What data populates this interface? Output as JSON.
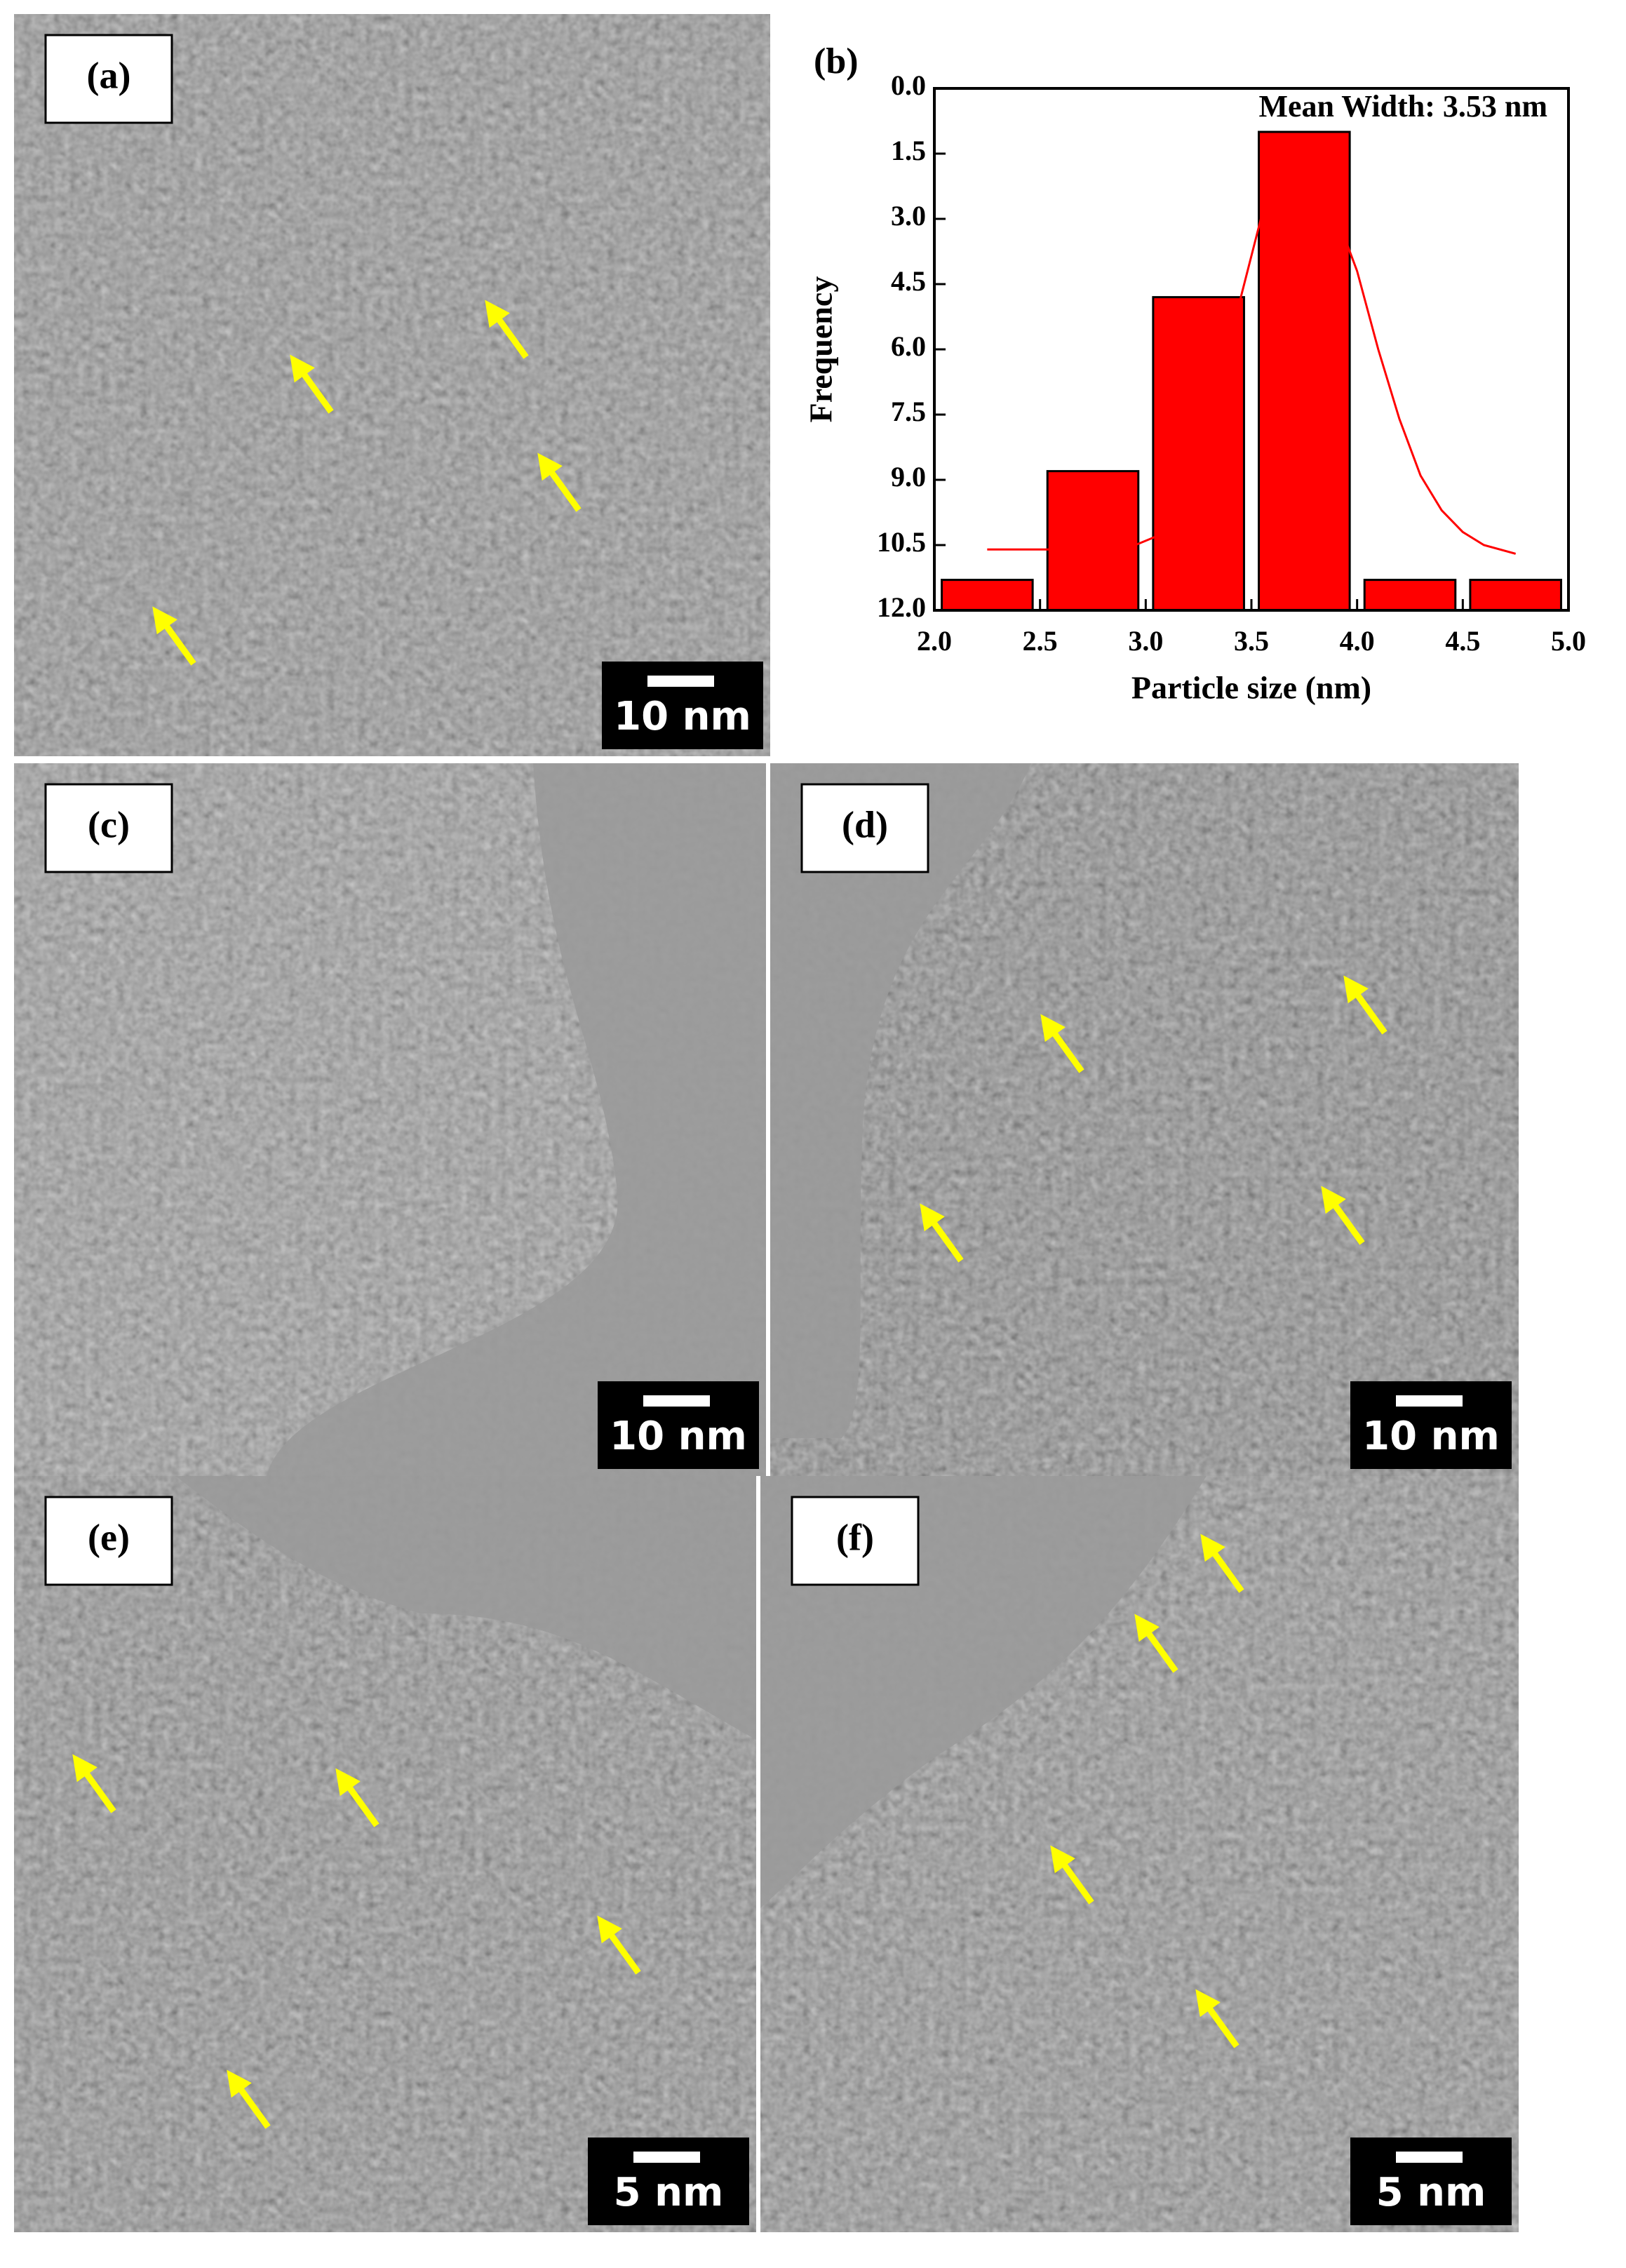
{
  "panels": [
    {
      "label": "(a)",
      "scale_bar": "10 nm"
    },
    {
      "label": "(b)"
    },
    {
      "label": "(c)",
      "scale_bar": "10 nm"
    },
    {
      "label": "(d)",
      "scale_bar": "10 nm"
    },
    {
      "label": "(e)",
      "scale_bar": "5 nm"
    },
    {
      "label": "(f)",
      "scale_bar": "5 nm"
    }
  ],
  "chart_data": {
    "type": "histogram",
    "annotation": "Mean Width: 3.53 nm",
    "x_label": "Particle size (nm)",
    "y_label": "Frequency",
    "bins": [
      2.0,
      2.5,
      3.0,
      3.5,
      4.0,
      4.5,
      5.0
    ],
    "values": [
      11.3,
      8.8,
      4.8,
      1.0,
      11.3,
      11.3
    ],
    "color": "#ff0000",
    "fit_curve": {
      "color": "#ff0000",
      "x": [
        2.25,
        2.6,
        2.9,
        3.05,
        3.2,
        3.35,
        3.45,
        3.55,
        3.65,
        3.8,
        3.9,
        4.0,
        4.1,
        4.2,
        4.3,
        4.4,
        4.5,
        4.6,
        4.75
      ],
      "values": [
        10.6,
        10.6,
        10.6,
        10.3,
        9.6,
        7.5,
        4.8,
        2.9,
        2.6,
        2.6,
        2.9,
        4.2,
        6.0,
        7.6,
        8.9,
        9.7,
        10.2,
        10.5,
        10.7
      ]
    },
    "xlim": [
      2.0,
      5.0
    ],
    "xticks": [
      {
        "value": 2.0,
        "label": "2.0"
      },
      2.5,
      {
        "value": 3.0,
        "label": "3.0"
      },
      3.5,
      {
        "value": 4.0,
        "label": "4.0"
      },
      4.5,
      {
        "value": 5.0,
        "label": "5.0"
      }
    ],
    "ylim": [
      0,
      12
    ],
    "y_inverted": true,
    "yticks": [
      {
        "value": 0,
        "label": "0.0"
      },
      1.5,
      {
        "value": 3,
        "label": "3.0"
      },
      4.5,
      {
        "value": 6,
        "label": "6.0"
      },
      7.5,
      {
        "value": 9,
        "label": "9.0"
      },
      10.5,
      {
        "value": 12,
        "label": "12.0"
      }
    ]
  }
}
